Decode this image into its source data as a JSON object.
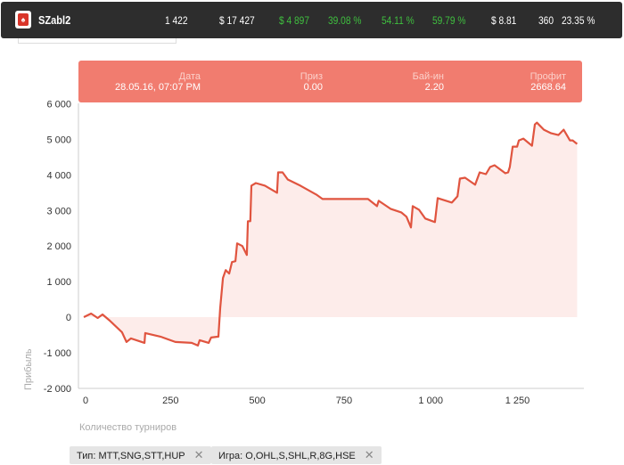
{
  "header": {
    "player": "SZabl2",
    "stats": [
      {
        "value": "1 422",
        "color": "#ffffff"
      },
      {
        "value": "$ 17 427",
        "color": "#ffffff"
      },
      {
        "value": "$ 4 897",
        "color": "#3fbf3f"
      },
      {
        "value": "39.08 %",
        "color": "#3fbf3f"
      },
      {
        "value": "54.11 %",
        "color": "#3fbf3f"
      },
      {
        "value": "59.79 %",
        "color": "#3fbf3f"
      },
      {
        "value": "$ 8.81",
        "color": "#ffffff"
      },
      {
        "value": "360",
        "color": "#ffffff"
      },
      {
        "value": "23.35 %",
        "color": "#ffffff"
      }
    ]
  },
  "tooltip": {
    "date_label": "Дата",
    "date": "28.05.16, 07:07 PM",
    "prize_label": "Приз",
    "prize": "0.00",
    "buyin_label": "Бай-ин",
    "buyin": "2.20",
    "profit_label": "Профит",
    "profit": "2668.64"
  },
  "filters": [
    {
      "label": "Тип: MTT,SNG,STT,HUP",
      "close": "✕"
    },
    {
      "label": "Игра: O,OHL,S,SHL,R,8G,HSE",
      "close": "✕"
    }
  ],
  "chart_data": {
    "type": "area",
    "xlabel": "Количество турниров",
    "ylabel": "Прибыль",
    "xlim": [
      0,
      1450
    ],
    "ylim": [
      -2000,
      6000
    ],
    "xticks": [
      "0",
      "250",
      "500",
      "750",
      "1 000",
      "1 250"
    ],
    "yticks": [
      "6 000",
      "5 000",
      "4 000",
      "3 000",
      "2 000",
      "1 000",
      "0",
      "-1 000",
      "-2 000"
    ],
    "line_color": "#e0543f",
    "fill_color": "#fdecea",
    "points": [
      [
        0,
        0
      ],
      [
        21,
        100
      ],
      [
        40,
        -25
      ],
      [
        54,
        75
      ],
      [
        75,
        -100
      ],
      [
        110,
        -425
      ],
      [
        123,
        -700
      ],
      [
        136,
        -600
      ],
      [
        175,
        -725
      ],
      [
        177,
        -450
      ],
      [
        221,
        -550
      ],
      [
        264,
        -700
      ],
      [
        311,
        -725
      ],
      [
        329,
        -800
      ],
      [
        334,
        -650
      ],
      [
        360,
        -725
      ],
      [
        367,
        -575
      ],
      [
        388,
        -550
      ],
      [
        393,
        250
      ],
      [
        401,
        1100
      ],
      [
        409,
        1325
      ],
      [
        419,
        1225
      ],
      [
        427,
        1550
      ],
      [
        437,
        1575
      ],
      [
        442,
        2075
      ],
      [
        457,
        2000
      ],
      [
        470,
        1750
      ],
      [
        473,
        2700
      ],
      [
        480,
        2700
      ],
      [
        483,
        3700
      ],
      [
        496,
        3775
      ],
      [
        522,
        3700
      ],
      [
        557,
        3500
      ],
      [
        560,
        4075
      ],
      [
        573,
        4075
      ],
      [
        588,
        3875
      ],
      [
        624,
        3700
      ],
      [
        670,
        3450
      ],
      [
        688,
        3325
      ],
      [
        735,
        3325
      ],
      [
        794,
        3325
      ],
      [
        819,
        3325
      ],
      [
        845,
        3125
      ],
      [
        850,
        3275
      ],
      [
        884,
        3050
      ],
      [
        915,
        2950
      ],
      [
        930,
        2825
      ],
      [
        943,
        2525
      ],
      [
        948,
        3125
      ],
      [
        966,
        3025
      ],
      [
        984,
        2775
      ],
      [
        1012,
        2675
      ],
      [
        1020,
        3350
      ],
      [
        1061,
        3225
      ],
      [
        1077,
        3400
      ],
      [
        1084,
        3900
      ],
      [
        1099,
        3925
      ],
      [
        1128,
        3725
      ],
      [
        1141,
        4075
      ],
      [
        1159,
        4025
      ],
      [
        1171,
        4225
      ],
      [
        1184,
        4275
      ],
      [
        1215,
        4050
      ],
      [
        1223,
        4075
      ],
      [
        1228,
        4225
      ],
      [
        1236,
        4800
      ],
      [
        1249,
        4800
      ],
      [
        1254,
        4975
      ],
      [
        1267,
        5025
      ],
      [
        1292,
        4825
      ],
      [
        1300,
        5425
      ],
      [
        1306,
        5475
      ],
      [
        1326,
        5275
      ],
      [
        1347,
        5175
      ],
      [
        1368,
        5125
      ],
      [
        1383,
        5275
      ],
      [
        1401,
        4975
      ],
      [
        1409,
        4975
      ],
      [
        1422,
        4875
      ]
    ]
  }
}
